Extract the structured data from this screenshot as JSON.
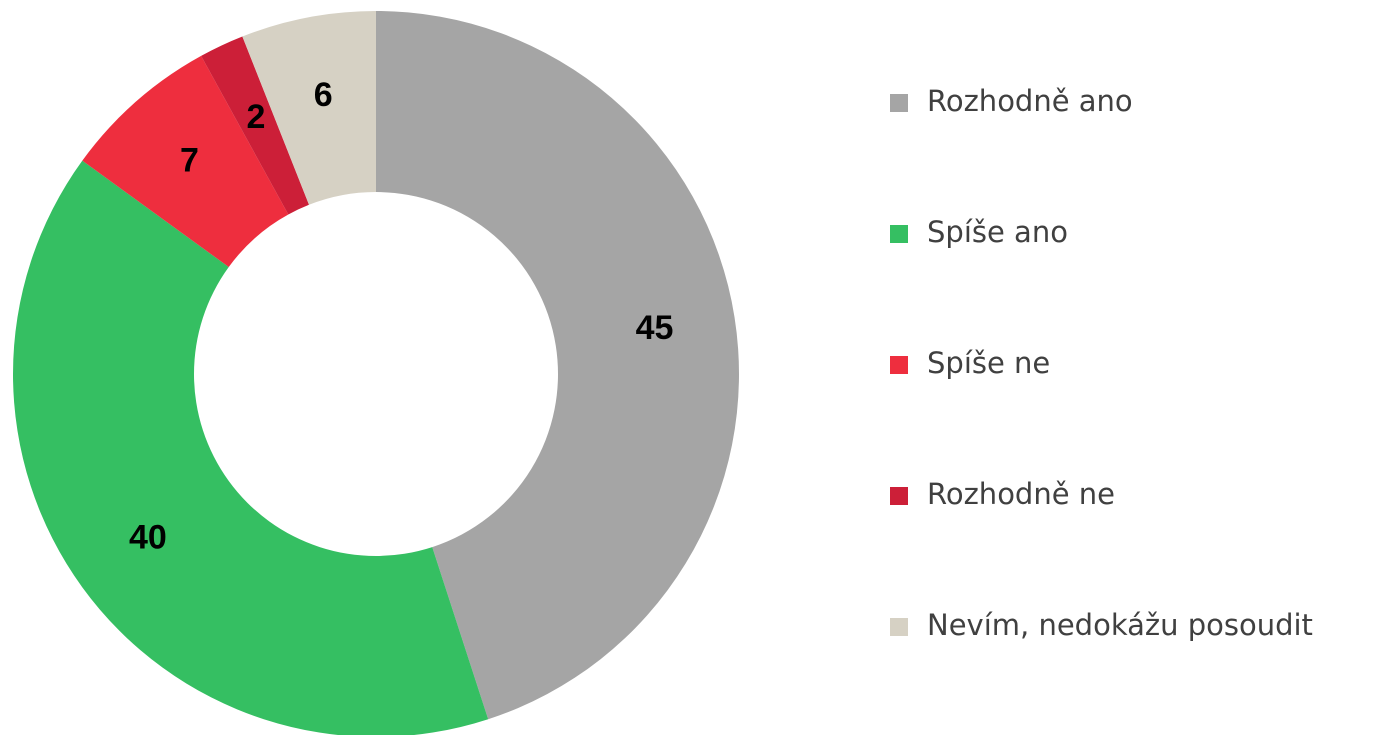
{
  "chart_data": {
    "type": "donut",
    "categories": [
      "Rozhodně ano",
      "Spíše ano",
      "Spíše ne",
      "Rozhodně ne",
      "Nevím, nedokážu posoudit"
    ],
    "values": [
      45,
      40,
      7,
      2,
      6
    ],
    "colors": [
      "#a5a5a5",
      "#35bf62",
      "#ee2e3e",
      "#cc1f38",
      "#d6d1c4"
    ],
    "legend": "right"
  }
}
